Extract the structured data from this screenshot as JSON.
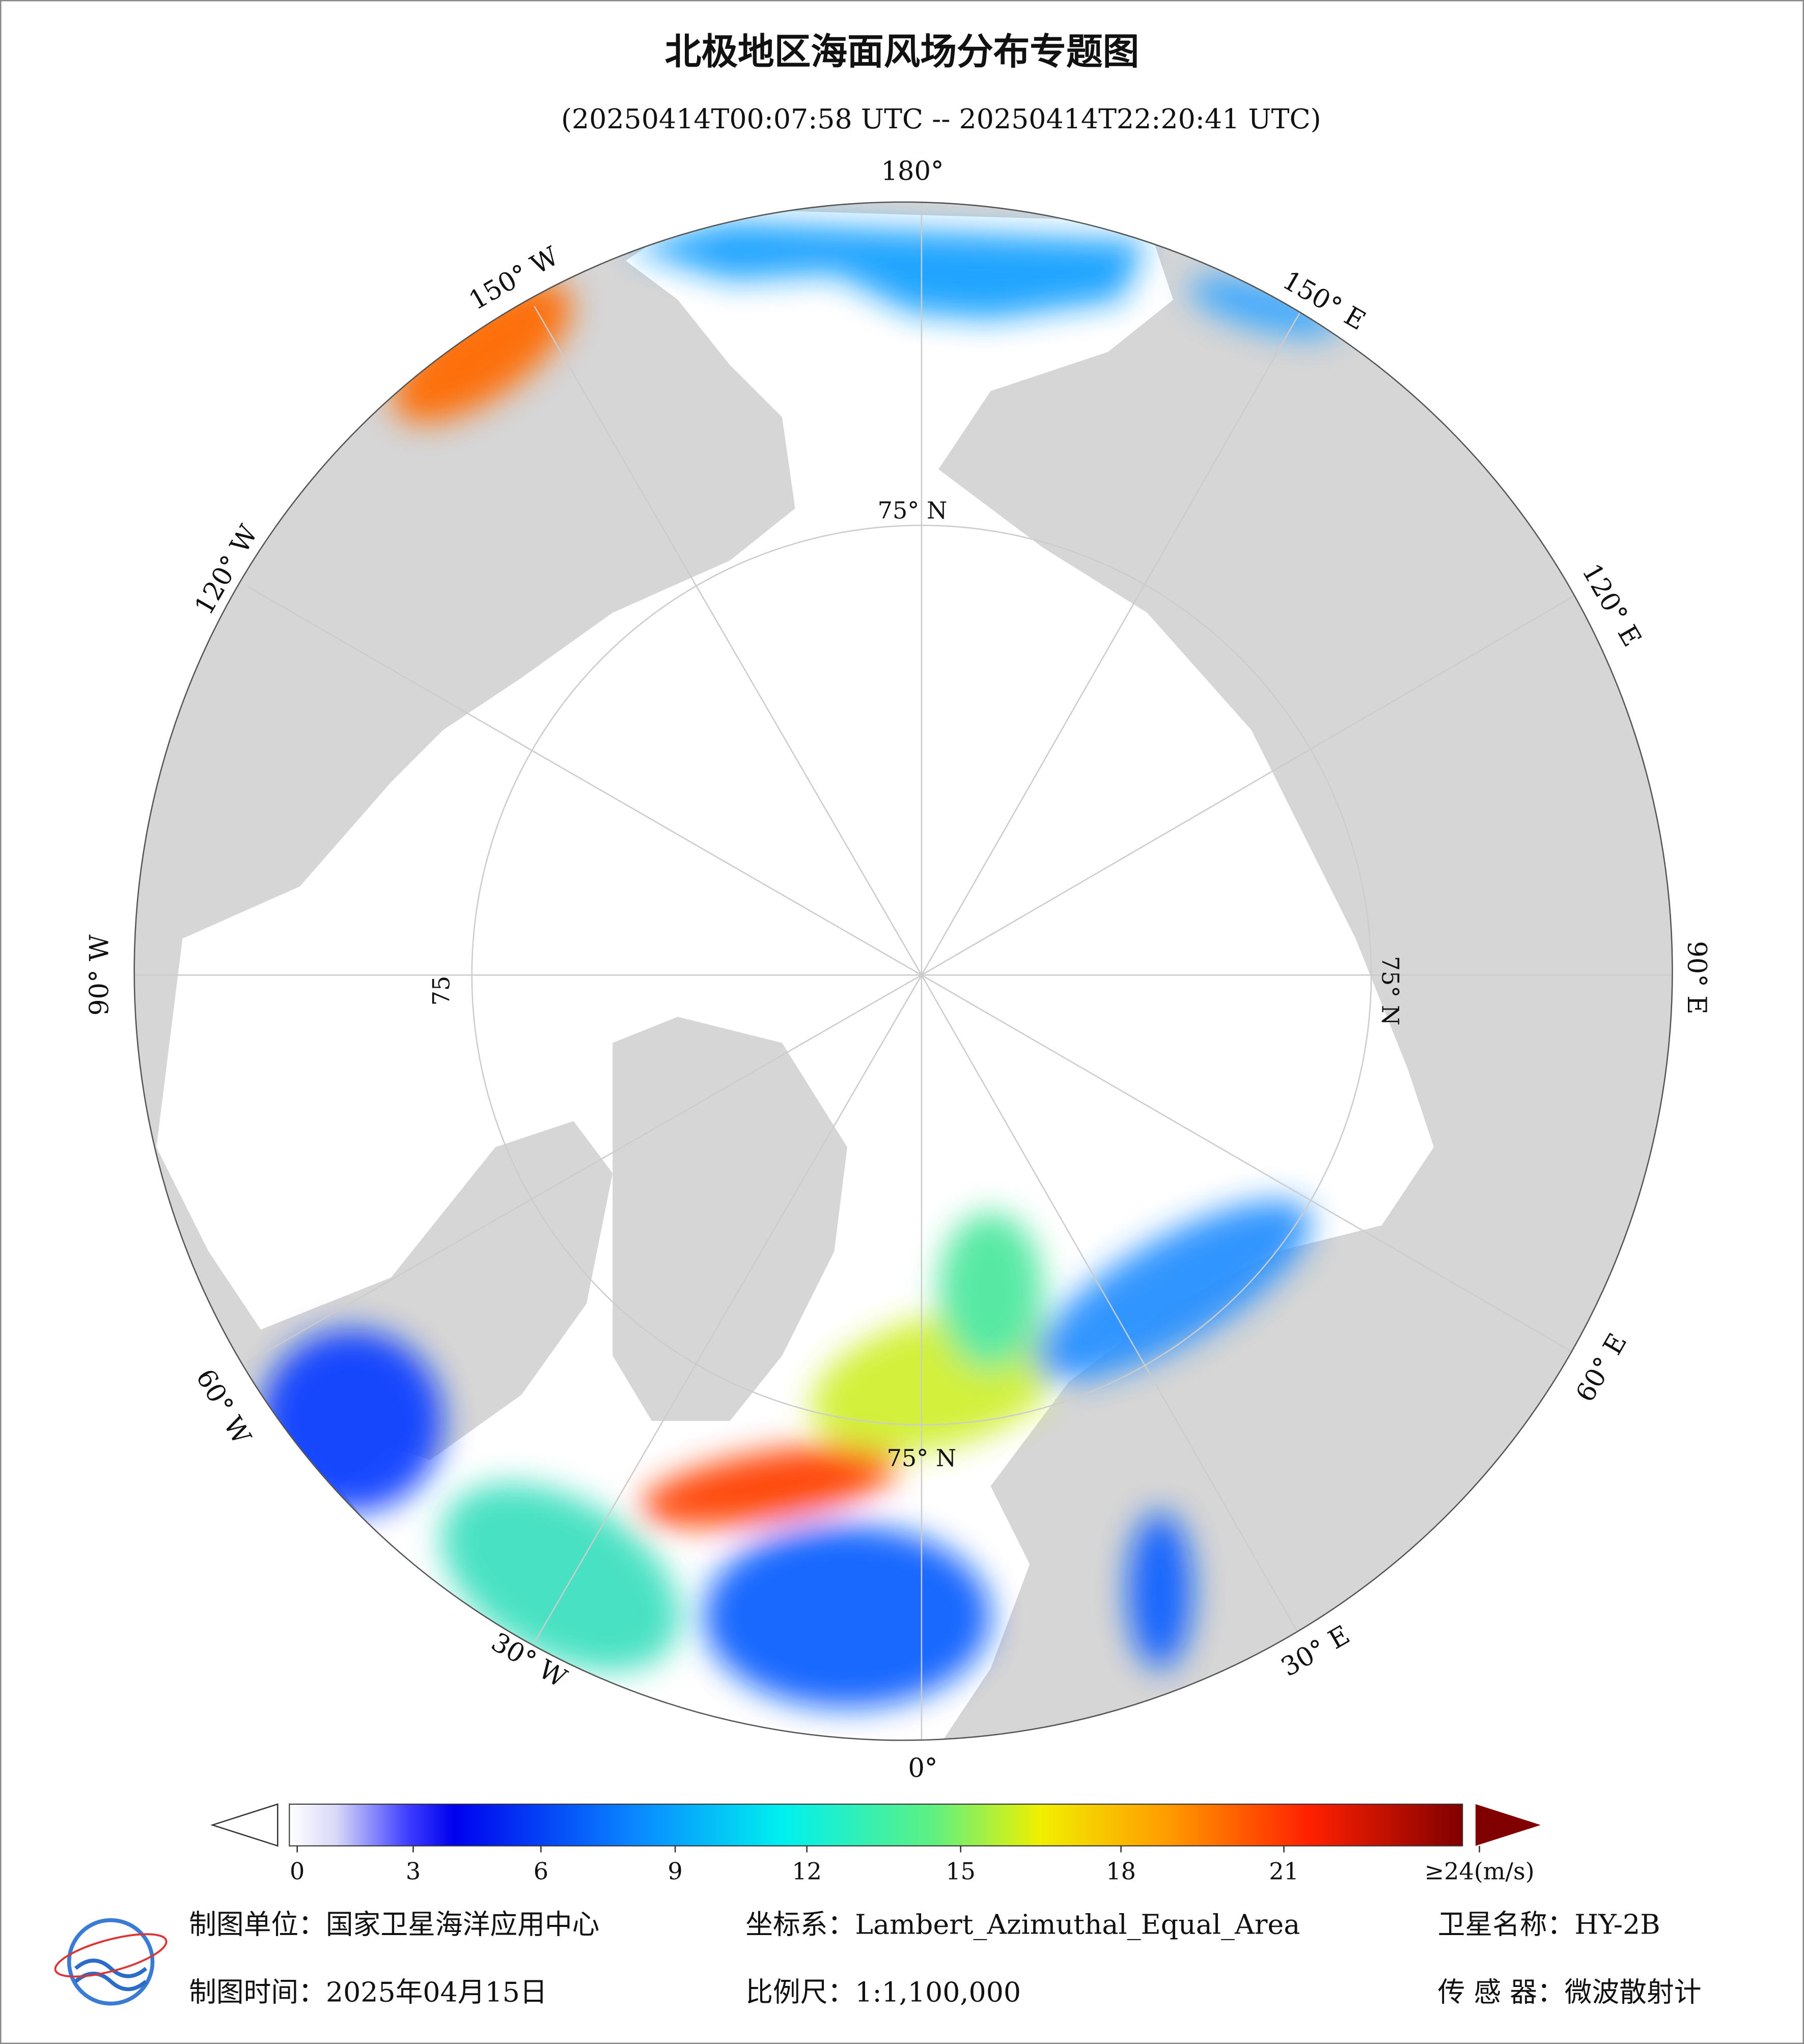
{
  "header": {
    "title": "北极地区海面风场分布专题图",
    "subtitle": "(20250414T00:07:58 UTC -- 20250414T22:20:41 UTC)"
  },
  "map": {
    "lon_labels": [
      "180°",
      "150° W",
      "120° W",
      "90° W",
      "60° W",
      "30° W",
      "0°",
      "30° E",
      "60° E",
      "90° E",
      "120° E",
      "150° E"
    ],
    "lat_labels": [
      "75° N",
      "75° N",
      "75° N",
      "75"
    ]
  },
  "colorbar": {
    "ticks": [
      0,
      3,
      6,
      9,
      12,
      15,
      18,
      21,
      {
        "value": 24,
        "label": "≥24(m/s)"
      }
    ]
  },
  "footer": {
    "rows": [
      [
        "制图单位：国家卫星海洋应用中心",
        "坐标系：Lambert_Azimuthal_Equal_Area",
        "卫星名称：HY-2B"
      ],
      [
        "制图时间：2025年04月15日",
        "比例尺：1:1,100,000",
        "传 感 器：微波散射计"
      ]
    ]
  }
}
